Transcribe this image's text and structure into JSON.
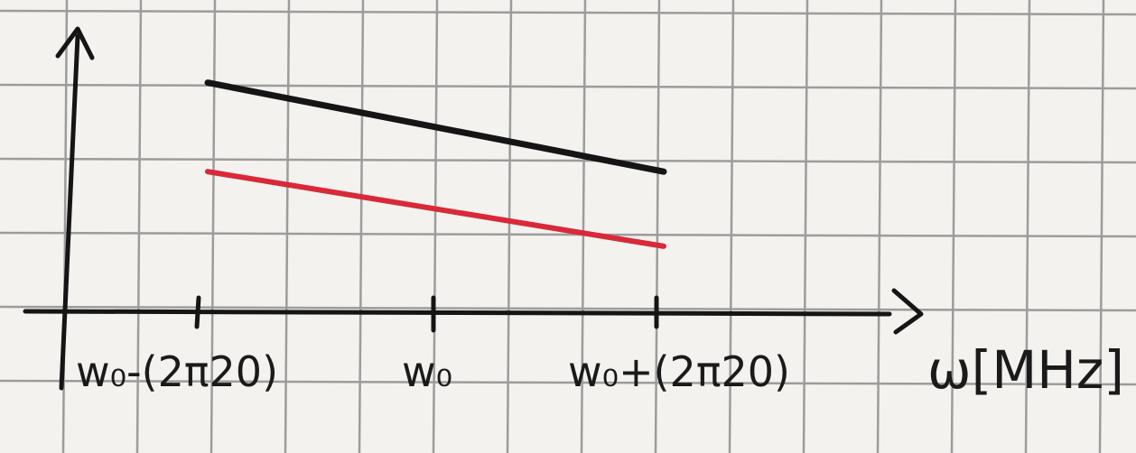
{
  "axis": {
    "x_label": "ω[MHz]",
    "ticks": [
      "w₀-(2π20)",
      "w₀",
      "w₀+(2π20)"
    ]
  },
  "lines": [
    {
      "color": "#151515",
      "from": "w₀-(2π20)",
      "to": "w₀+(2π20)",
      "start_level": 0.8,
      "end_level": 0.49
    },
    {
      "color": "#d8293a",
      "from": "w₀-(2π20)",
      "to": "w₀+(2π20)",
      "start_level": 0.49,
      "end_level": 0.23
    }
  ],
  "colors": {
    "paper": "#f3f2ee",
    "grid": "#9c9c9c",
    "ink": "#151515",
    "red_ink": "#d8293a"
  }
}
